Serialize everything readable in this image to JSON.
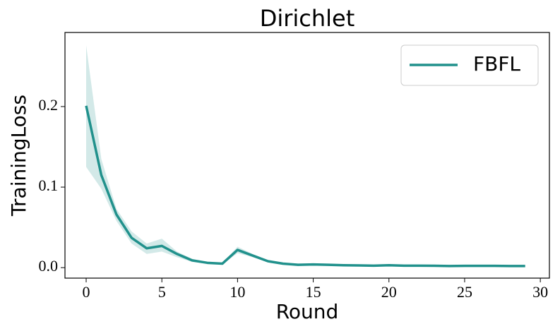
{
  "chart_data": {
    "type": "line",
    "title": "Dirichlet",
    "x_label": "Round",
    "y_label": "TrainingLoss",
    "x": [
      0,
      1,
      2,
      3,
      4,
      5,
      6,
      7,
      8,
      9,
      10,
      11,
      12,
      13,
      14,
      15,
      16,
      17,
      18,
      19,
      20,
      21,
      22,
      23,
      24,
      25,
      26,
      27,
      28,
      29
    ],
    "series": [
      {
        "name": "FBFL",
        "color": "#21918c",
        "values": [
          0.201,
          0.115,
          0.066,
          0.037,
          0.024,
          0.027,
          0.017,
          0.009,
          0.006,
          0.005,
          0.022,
          0.015,
          0.008,
          0.005,
          0.0035,
          0.004,
          0.0035,
          0.003,
          0.0028,
          0.0025,
          0.003,
          0.0025,
          0.0025,
          0.0023,
          0.002,
          0.0022,
          0.0022,
          0.0022,
          0.002,
          0.002
        ],
        "band": {
          "upper": [
            0.276,
            0.135,
            0.073,
            0.045,
            0.03,
            0.036,
            0.02,
            0.011,
            0.007,
            0.006,
            0.026,
            0.017,
            0.009,
            0.006,
            0.0045,
            0.005,
            0.0045,
            0.004,
            0.0036,
            0.0033,
            0.004,
            0.0033,
            0.0032,
            0.003,
            0.0027,
            0.0029,
            0.0029,
            0.0029,
            0.0027,
            0.0026
          ],
          "lower": [
            0.125,
            0.098,
            0.058,
            0.03,
            0.017,
            0.02,
            0.013,
            0.007,
            0.005,
            0.004,
            0.018,
            0.013,
            0.007,
            0.004,
            0.0027,
            0.003,
            0.0027,
            0.0022,
            0.002,
            0.0018,
            0.0022,
            0.0018,
            0.0018,
            0.0016,
            0.0014,
            0.0016,
            0.0016,
            0.0016,
            0.0014,
            0.0014
          ]
        }
      }
    ],
    "xlim": [
      -1.4,
      30.6
    ],
    "ylim": [
      -0.013,
      0.292
    ],
    "xticks": [
      0,
      5,
      10,
      15,
      20,
      25,
      30
    ],
    "yticks": [
      {
        "value": 0,
        "label": "0.0"
      },
      0.1,
      0.2
    ],
    "legend": "upper right"
  }
}
